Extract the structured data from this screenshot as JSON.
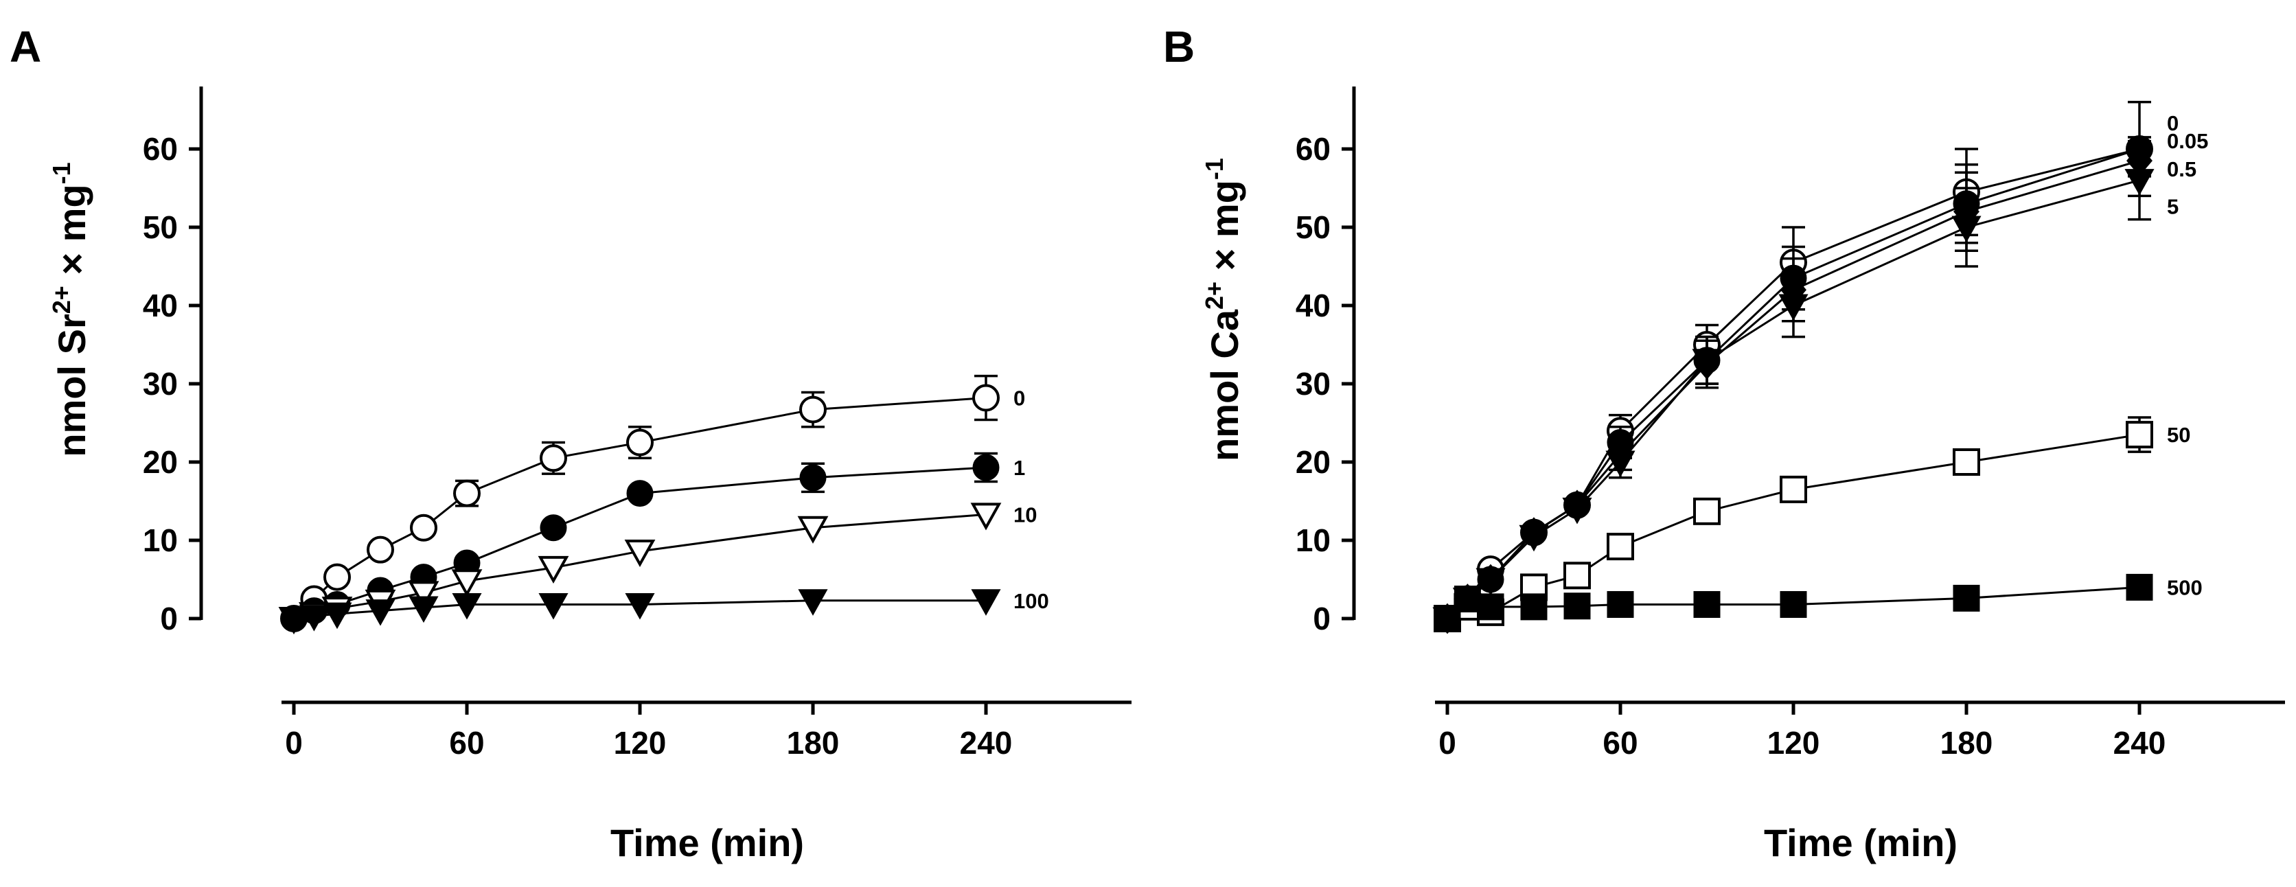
{
  "chart_data": [
    {
      "panel": "A",
      "type": "line",
      "ylabel_parts": [
        "nmol Sr",
        "2+",
        " × mg",
        "-1"
      ],
      "xlabel": "Time (min)",
      "xlim": [
        0,
        290
      ],
      "ylim": [
        0,
        67
      ],
      "xticks": [
        0,
        60,
        120,
        180,
        240
      ],
      "xtick_labels": [
        "0",
        "60",
        "120",
        "180",
        "240"
      ],
      "yticks": [
        0,
        10,
        20,
        30,
        40,
        50,
        60
      ],
      "ytick_labels": [
        "0",
        "10",
        "20",
        "30",
        "40",
        "50",
        "60"
      ],
      "series": [
        {
          "name": "0",
          "label": "0",
          "marker": "circle-open",
          "x": [
            0,
            7,
            15,
            30,
            45,
            60,
            90,
            120,
            180,
            240
          ],
          "y": [
            0,
            2.5,
            5.3,
            8.8,
            11.6,
            16.0,
            20.5,
            22.5,
            26.7,
            28.2
          ],
          "err": [
            0,
            0,
            0,
            0,
            0,
            1.6,
            2.0,
            2.0,
            2.2,
            2.8
          ]
        },
        {
          "name": "1",
          "label": "1",
          "marker": "circle-filled",
          "x": [
            0,
            7,
            15,
            30,
            45,
            60,
            90,
            120,
            180,
            240
          ],
          "y": [
            0,
            1.0,
            1.8,
            3.6,
            5.3,
            7.1,
            11.6,
            16.0,
            18.0,
            19.3
          ],
          "err": [
            0,
            0,
            0,
            0,
            0,
            0,
            0,
            0,
            1.8,
            1.8
          ]
        },
        {
          "name": "10",
          "label": "10",
          "marker": "triangle-down-open",
          "x": [
            0,
            7,
            15,
            30,
            45,
            60,
            90,
            120,
            180,
            240
          ],
          "y": [
            0,
            0.6,
            1.3,
            2.2,
            3.3,
            4.8,
            6.5,
            8.6,
            11.6,
            13.3
          ],
          "err": [
            0,
            0,
            0,
            0,
            0,
            0,
            0,
            0,
            0,
            0
          ]
        },
        {
          "name": "100",
          "label": "100",
          "marker": "triangle-down-filled",
          "x": [
            0,
            7,
            15,
            30,
            45,
            60,
            90,
            120,
            180,
            240
          ],
          "y": [
            0,
            0.3,
            0.6,
            1.0,
            1.4,
            1.8,
            1.8,
            1.8,
            2.3,
            2.3
          ],
          "err": [
            0,
            0,
            0,
            0,
            0,
            0,
            0,
            0,
            0,
            0
          ]
        }
      ]
    },
    {
      "panel": "B",
      "type": "line",
      "ylabel_parts": [
        "nmol Ca",
        "2+",
        " × mg",
        "-1"
      ],
      "xlabel": "Time (min)",
      "xlim": [
        0,
        290
      ],
      "ylim": [
        0,
        67
      ],
      "xticks": [
        0,
        60,
        120,
        180,
        240
      ],
      "xtick_labels": [
        "0",
        "60",
        "120",
        "180",
        "240"
      ],
      "yticks": [
        0,
        10,
        20,
        30,
        40,
        50,
        60
      ],
      "ytick_labels": [
        "0",
        "10",
        "20",
        "30",
        "40",
        "50",
        "60"
      ],
      "series": [
        {
          "name": "0",
          "label": "0",
          "marker": "circle-open",
          "x": [
            0,
            7,
            15,
            30,
            45,
            60,
            90,
            120,
            180,
            240
          ],
          "y": [
            0,
            2.5,
            6.3,
            11.0,
            14.5,
            24.0,
            35.0,
            45.5,
            54.5,
            60.0
          ],
          "err": [
            0,
            0,
            0,
            0,
            0,
            2.0,
            2.5,
            4.5,
            5.5,
            6.0
          ]
        },
        {
          "name": "0.05",
          "label": "0.05",
          "marker": "circle-filled",
          "x": [
            0,
            7,
            15,
            30,
            45,
            60,
            90,
            120,
            180,
            240
          ],
          "y": [
            0,
            2.5,
            5.0,
            11.0,
            14.5,
            22.5,
            33.0,
            43.5,
            53.0,
            60.0
          ],
          "err": [
            0,
            0,
            0,
            0,
            0,
            2.0,
            3.0,
            4.0,
            5.0,
            1.5
          ]
        },
        {
          "name": "0.5",
          "label": "0.5",
          "marker": "diamond-filled",
          "x": [
            0,
            7,
            15,
            30,
            45,
            60,
            90,
            120,
            180,
            240
          ],
          "y": [
            0,
            2.5,
            5.0,
            11.0,
            14.5,
            21.0,
            32.5,
            42.0,
            52.0,
            58.5
          ],
          "err": [
            0,
            0,
            0,
            0,
            0,
            2.0,
            3.0,
            4.0,
            5.0,
            2.0
          ]
        },
        {
          "name": "5",
          "label": "5",
          "marker": "triangle-down-filled",
          "x": [
            0,
            7,
            15,
            30,
            45,
            60,
            90,
            120,
            180,
            240
          ],
          "y": [
            0,
            2.5,
            5.0,
            10.5,
            14.0,
            20.0,
            33.0,
            40.0,
            50.0,
            56.0
          ],
          "err": [
            0,
            0,
            0,
            0,
            0,
            2.0,
            3.0,
            4.0,
            5.0,
            5.0
          ]
        },
        {
          "name": "50",
          "label": "50",
          "marker": "square-open",
          "x": [
            0,
            7,
            15,
            30,
            45,
            60,
            90,
            120,
            180,
            240
          ],
          "y": [
            0,
            1.5,
            0.8,
            4.0,
            5.5,
            9.2,
            13.7,
            16.5,
            20.0,
            23.5
          ],
          "err": [
            0,
            0,
            0,
            0,
            0,
            0,
            0,
            0,
            1.5,
            2.2
          ]
        },
        {
          "name": "500",
          "label": "500",
          "marker": "square-filled",
          "x": [
            0,
            7,
            15,
            30,
            45,
            60,
            90,
            120,
            180,
            240
          ],
          "y": [
            0,
            2.5,
            1.5,
            1.5,
            1.6,
            1.8,
            1.8,
            1.8,
            2.6,
            4.0
          ],
          "err": [
            0,
            0,
            0,
            0,
            0,
            0,
            0,
            0,
            0,
            0
          ]
        }
      ]
    }
  ]
}
